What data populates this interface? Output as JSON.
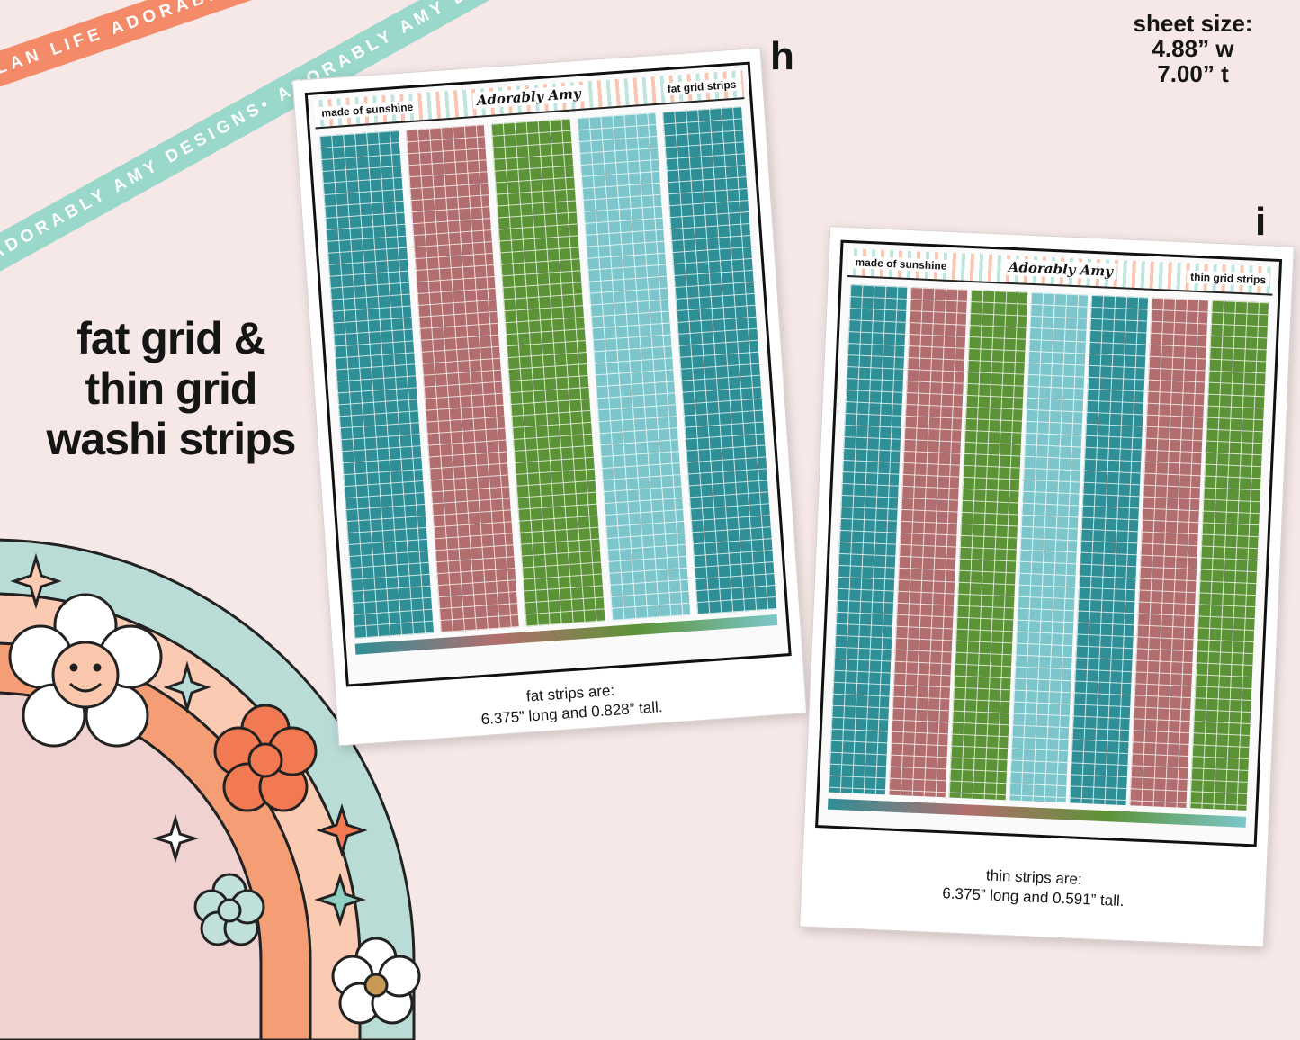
{
  "ribbons": {
    "coral": "PLAN LIFE ADORABLY • PLAN LIFE ADORABLY • PLAN LIFE ADORABLY",
    "teal": "ADORABLY AMY DESIGNS• ADORABLY AMY DESIGNS• ADORABLY AMY DESIGNS"
  },
  "sheet_size": {
    "heading": "sheet size:",
    "width": "4.88” w",
    "height": "7.00” t"
  },
  "title": {
    "line1": "fat grid &",
    "line2": "thin grid",
    "line3": "washi strips"
  },
  "sheet_h": {
    "letter": "h",
    "header_left": "made of sunshine",
    "header_logo": "Adorably Amy",
    "header_right": "fat grid strips",
    "strip_colors": [
      "#2f8f96",
      "#b26e6e",
      "#5c9337",
      "#7cc6cb",
      "#2f8f96"
    ],
    "caption_line1": "fat strips are:",
    "caption_line2": "6.375” long and 0.828” tall."
  },
  "sheet_i": {
    "letter": "i",
    "header_left": "made of sunshine",
    "header_logo": "Adorably Amy",
    "header_right": "thin grid strips",
    "strip_colors": [
      "#2f8f96",
      "#b26e6e",
      "#5c9337",
      "#7cc6cb",
      "#2f8f96",
      "#b26e6e",
      "#5c9337"
    ],
    "caption_line1": "thin strips are:",
    "caption_line2": "6.375” long and 0.591” tall."
  },
  "colors": {
    "background": "#f6e8e7",
    "rainbow_outer": "#b9dcd6",
    "rainbow_peach": "#fbcab3",
    "rainbow_orange": "#f59d74",
    "rainbow_inner": "#f0d3d1"
  }
}
